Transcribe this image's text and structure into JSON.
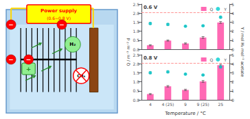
{
  "chart_data": [
    {
      "type": "diagram",
      "annotations": [
        "Power supply",
        "(0.6∼0.8 V)",
        "+",
        "−",
        "−",
        "−",
        "−",
        "H₂",
        "CH₄"
      ]
    },
    {
      "type": "bar",
      "title": "0.6 V",
      "ylabel": "Q / m⁻³ m⁻² d",
      "y2label": "Y / mol H₂ mol⁻¹ acetate",
      "categories": [
        "4",
        "4 (25)",
        "9",
        "9 (25)",
        "25"
      ],
      "series": [
        {
          "name": "Q",
          "type": "bar",
          "color": "#FF69B4",
          "values": [
            0.22,
            0.48,
            0.32,
            0.65,
            1.48
          ],
          "errors": [
            0.03,
            0.03,
            0.03,
            0.05,
            0.05
          ]
        },
        {
          "name": "Y",
          "type": "scatter",
          "axis": "y2",
          "color": "#00CED1",
          "marker": "circle",
          "values": [
            2.85,
            2.75,
            2.55,
            2.6,
            3.55
          ],
          "errors": [
            0.1,
            0.1,
            0.05,
            0.05,
            0.1
          ]
        }
      ],
      "reference_lines": [
        {
          "value": 2.05,
          "color": "#FF8888",
          "line_style": "dashed"
        }
      ],
      "ylim": [
        0,
        2.5
      ],
      "yticks": [
        {
          "value": 0,
          "label": "0.0"
        },
        0.5,
        {
          "value": 1,
          "label": "1.0"
        },
        1.5,
        {
          "value": 2,
          "label": "2.0"
        },
        2.5
      ],
      "y2lim": [
        0,
        5
      ],
      "y2ticks": [
        0,
        1,
        2,
        3,
        4,
        5
      ],
      "legend": "upper right",
      "tick_labels": "y"
    },
    {
      "type": "bar",
      "title": "0.8 V",
      "xlabel": "Temperature / °C",
      "categories": [
        "4",
        "4 (25)",
        "9",
        "9 (25)",
        "25"
      ],
      "series": [
        {
          "name": "Q",
          "type": "bar",
          "color": "#FF69B4",
          "values": [
            0.32,
            0.75,
            0.55,
            1.02,
            1.92
          ],
          "errors": [
            0.03,
            0.04,
            0.04,
            0.05,
            0.05
          ]
        },
        {
          "name": "Y",
          "type": "scatter",
          "axis": "y2",
          "color": "#00CED1",
          "marker": "circle",
          "values": [
            3.0,
            3.1,
            2.85,
            2.75,
            3.65
          ],
          "errors": [
            0.1,
            0.1,
            0.05,
            0.05,
            0.1
          ]
        }
      ],
      "reference_lines": [
        {
          "value": 2.05,
          "color": "#FF8888",
          "line_style": "dashed"
        }
      ],
      "ylim": [
        0,
        2.5
      ],
      "yticks": [
        {
          "value": 0,
          "label": "0.0"
        },
        0.5,
        {
          "value": 1,
          "label": "1.0"
        },
        1.5,
        {
          "value": 2,
          "label": "2.0"
        },
        2.5
      ],
      "y2lim": [
        0,
        5
      ],
      "y2ticks": [
        0,
        1,
        2,
        3,
        4,
        5
      ],
      "legend": "upper right"
    }
  ]
}
